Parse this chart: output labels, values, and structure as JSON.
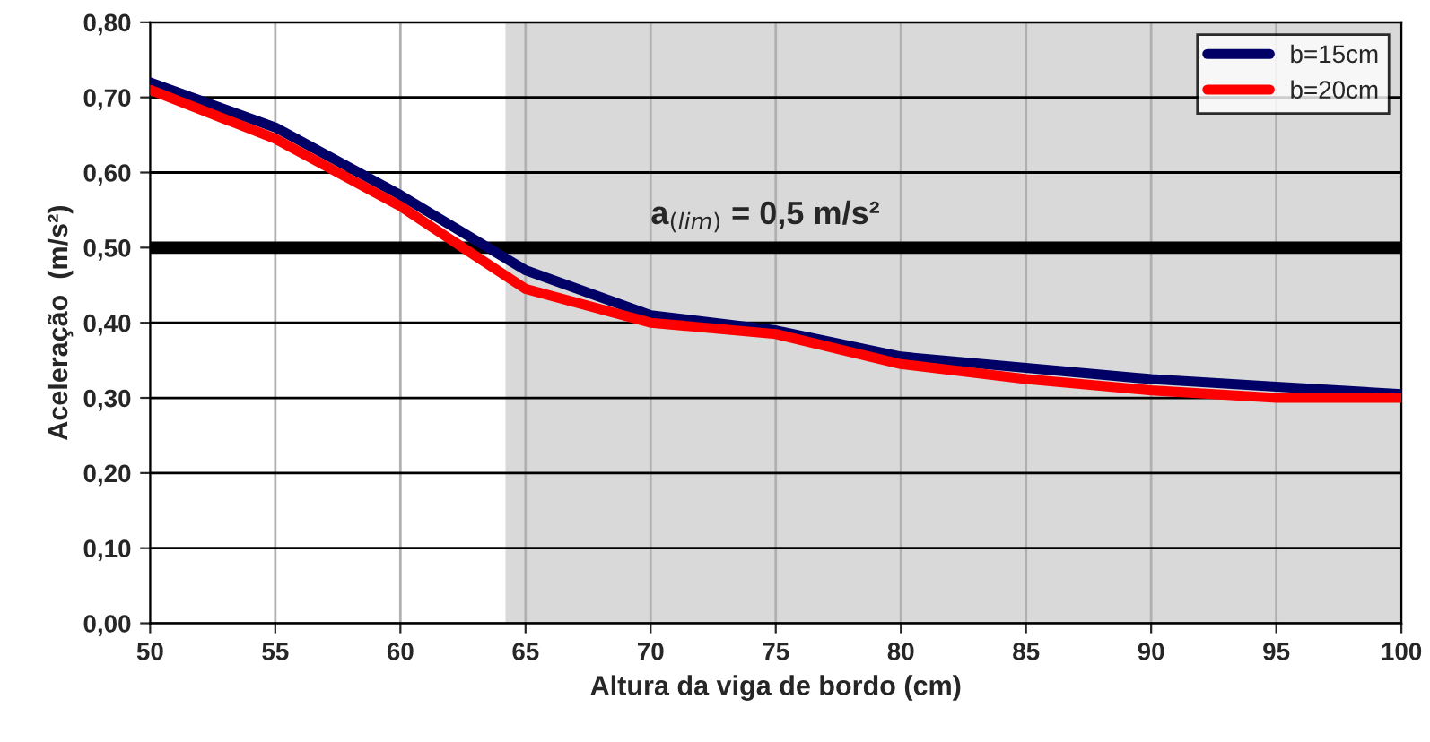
{
  "chart_data": {
    "type": "line",
    "xlabel": "Altura da viga de bordo (cm)",
    "ylabel": "Aceleração  (m/s²)",
    "x": [
      50,
      55,
      60,
      65,
      70,
      75,
      80,
      85,
      90,
      95,
      100
    ],
    "series": [
      {
        "name": "b=15cm",
        "color": "#000066",
        "values": [
          0.72,
          0.66,
          0.57,
          0.47,
          0.41,
          0.39,
          0.355,
          0.34,
          0.325,
          0.315,
          0.305
        ]
      },
      {
        "name": "b=20cm",
        "color": "#ff0000",
        "values": [
          0.71,
          0.645,
          0.555,
          0.445,
          0.4,
          0.385,
          0.345,
          0.325,
          0.31,
          0.3,
          0.3
        ]
      }
    ],
    "xlim": [
      50,
      100
    ],
    "xticks": [
      50,
      55,
      60,
      65,
      70,
      75,
      80,
      85,
      90,
      95,
      100
    ],
    "ylim": [
      0,
      0.8
    ],
    "yticks": [
      {
        "value": 0,
        "label": "0,00"
      },
      {
        "value": 0.1,
        "label": "0,10"
      },
      {
        "value": 0.2,
        "label": "0,20"
      },
      {
        "value": 0.3,
        "label": "0,30"
      },
      {
        "value": 0.4,
        "label": "0,40"
      },
      {
        "value": 0.5,
        "label": "0,50"
      },
      {
        "value": 0.6,
        "label": "0,60"
      },
      {
        "value": 0.7,
        "label": "0,70"
      },
      {
        "value": 0.8,
        "label": "0,80"
      }
    ],
    "ref_lines": [
      {
        "axis": "y",
        "value": 0.5,
        "label": "a$_{(lim)}$ = 0,5 m/s²",
        "color": "#000000"
      }
    ],
    "bands": [
      {
        "axis": "x",
        "from": 64.2,
        "to": 100,
        "color": "#d9d9d9"
      }
    ],
    "grid": true,
    "legend": "top right",
    "marker": "none",
    "line_style": "solid"
  }
}
